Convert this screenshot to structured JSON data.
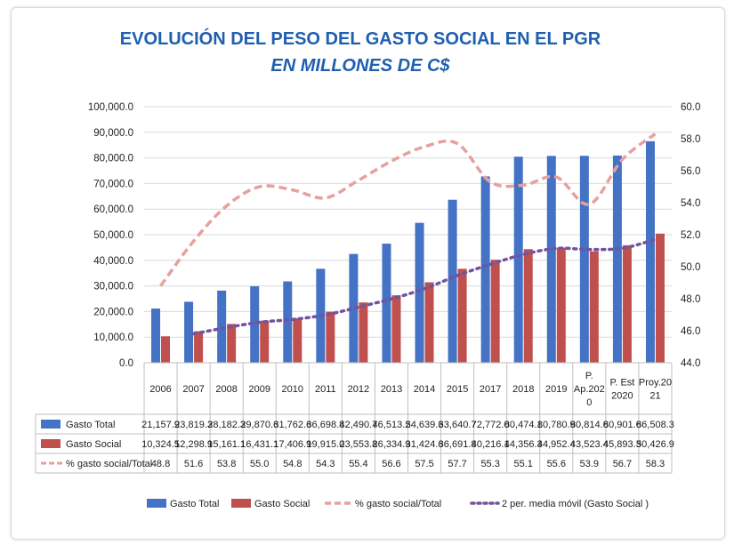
{
  "chart_data": {
    "type": "bar",
    "title": "EVOLUCIÓN DEL PESO DEL GASTO SOCIAL EN EL PGR",
    "subtitle": "EN MILLONES DE C$",
    "categories": [
      [
        "2006"
      ],
      [
        "2007"
      ],
      [
        "2008"
      ],
      [
        "2009"
      ],
      [
        "2010"
      ],
      [
        "2011"
      ],
      [
        "2012"
      ],
      [
        "2013"
      ],
      [
        "2014"
      ],
      [
        "2015"
      ],
      [
        "2017"
      ],
      [
        "2018"
      ],
      [
        "2019"
      ],
      [
        "P.",
        "Ap.202",
        "0"
      ],
      [
        "P. Est",
        "2020"
      ],
      [
        "Proy.20",
        "21"
      ]
    ],
    "y_left": {
      "min": 0,
      "max": 100000,
      "step": 10000,
      "ticks": [
        "0.0",
        "10,000.0",
        "20,000.0",
        "30,000.0",
        "40,000.0",
        "50,000.0",
        "60,000.0",
        "70,000.0",
        "80,000.0",
        "90,000.0",
        "100,000.0"
      ]
    },
    "y_right": {
      "min": 44,
      "max": 60,
      "step": 2,
      "ticks": [
        "44.0",
        "46.0",
        "48.0",
        "50.0",
        "52.0",
        "54.0",
        "56.0",
        "58.0",
        "60.0"
      ]
    },
    "grid": true,
    "legend_position": "bottom",
    "series": [
      {
        "name": "Gasto Total",
        "kind": "bar",
        "axis": "left",
        "color": "#4472c4",
        "values": [
          21157.9,
          23819.3,
          28182.3,
          29870.6,
          31762.6,
          36698.8,
          42490.7,
          46513.2,
          54639.3,
          63640.7,
          72772.0,
          80474.1,
          80780.9,
          80814.6,
          80901.6,
          86508.3
        ],
        "labels": [
          "21,157.9",
          "23,819.3",
          "28,182.3",
          "29,870.6",
          "31,762.6",
          "36,698.8",
          "42,490.7",
          "46,513.2",
          "54,639.3",
          "63,640.7",
          "72,772.0",
          "80,474.1",
          "80,780.9",
          "80,814.6",
          "80,901.6",
          "86,508.3"
        ]
      },
      {
        "name": "Gasto Social",
        "kind": "bar",
        "axis": "left",
        "color": "#c0504d",
        "values": [
          10324.5,
          12298.9,
          15161.1,
          16431.1,
          17406.9,
          19915.0,
          23553.8,
          26334.9,
          31424.6,
          36691.8,
          40216.1,
          44356.3,
          44952.4,
          43523.4,
          45893.3,
          50426.9
        ],
        "labels": [
          "10,324.5",
          "12,298.9",
          "15,161.1",
          "16,431.1",
          "17,406.9",
          "19,915.0",
          "23,553.8",
          "26,334.9",
          "31,424.6",
          "36,691.8",
          "40,216.1",
          "44,356.3",
          "44,952.4",
          "43,523.4",
          "45,893.3",
          "50,426.9"
        ]
      },
      {
        "name": "% gasto social/Total",
        "kind": "line",
        "axis": "right",
        "color": "#e6a19d",
        "values": [
          48.8,
          51.6,
          53.8,
          55.0,
          54.8,
          54.3,
          55.4,
          56.6,
          57.5,
          57.7,
          55.3,
          55.1,
          55.6,
          53.9,
          56.7,
          58.3
        ],
        "labels": [
          "48.8",
          "51.6",
          "53.8",
          "55.0",
          "54.8",
          "54.3",
          "55.4",
          "56.6",
          "57.5",
          "57.7",
          "55.3",
          "55.1",
          "55.6",
          "53.9",
          "56.7",
          "58.3"
        ]
      },
      {
        "name": "2 per. media móvil (Gasto Social )",
        "kind": "line",
        "axis": "left",
        "color": "#7153a0",
        "values": [
          null,
          11311.7,
          13730.0,
          15796.1,
          16919.0,
          18661.0,
          21734.4,
          24944.4,
          28879.8,
          34058.2,
          38454.0,
          42286.2,
          44654.4,
          44237.9,
          44708.4,
          48160.1
        ]
      }
    ],
    "table_rows": [
      "Gasto Total",
      "Gasto Social",
      "% gasto social/Total"
    ],
    "legend": [
      "Gasto Total",
      "Gasto Social",
      "% gasto social/Total",
      "2 per. media móvil (Gasto Social )"
    ]
  }
}
